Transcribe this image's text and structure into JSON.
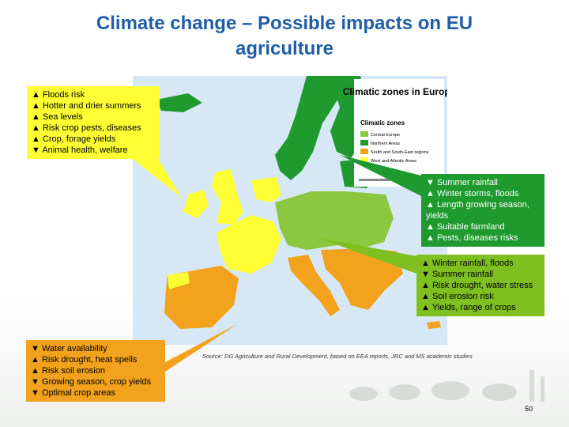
{
  "slide": {
    "title_line1": "Climate change – Possible impacts on EU",
    "title_line2": "agriculture",
    "page_number": "50",
    "source": "Source: DG Agriculture and Rural Development, based on EEA reports, JRC and MS academic studies"
  },
  "map": {
    "title": "Climatic zones in Europe",
    "legend_heading": "Climatic zones",
    "legend": [
      {
        "label": "Central Europe",
        "color": "#8dc63f"
      },
      {
        "label": "Northern Areas",
        "color": "#1f9a2f"
      },
      {
        "label": "South and South-East regions",
        "color": "#f2a21c"
      },
      {
        "label": "West and Atlantic Areas",
        "color": "#ffff33"
      }
    ]
  },
  "boxes": {
    "atlantic": [
      "▲ Floods risk",
      "▲ Hotter and drier summers",
      "▲ Sea levels",
      "▲ Risk crop pests, diseases",
      "▲ Crop, forage yields",
      "▼ Animal health, welfare"
    ],
    "northern": [
      "▼ Summer rainfall",
      "▲ Winter storms, floods",
      "▲ Length growing season, yields",
      "▲ Suitable farmland",
      "▲ Pests, diseases risks"
    ],
    "central": [
      "▲ Winter rainfall, floods",
      "▼ Summer rainfall",
      "▲ Risk drought, water stress",
      "▲ Soil erosion risk",
      "▲ Yields, range of crops"
    ],
    "southern": [
      "▼ Water availability",
      "▲ Risk drought, heat spells",
      "▲ Risk soil erosion",
      "▼ Growing season, crop yields",
      "▼ Optimal crop areas"
    ]
  },
  "colors": {
    "title": "#1f5da8",
    "west_atlantic": "#ffff33",
    "northern": "#1f9a2f",
    "central": "#8dc63f",
    "southern": "#f2a21c",
    "sea": "#d6e8f5"
  }
}
